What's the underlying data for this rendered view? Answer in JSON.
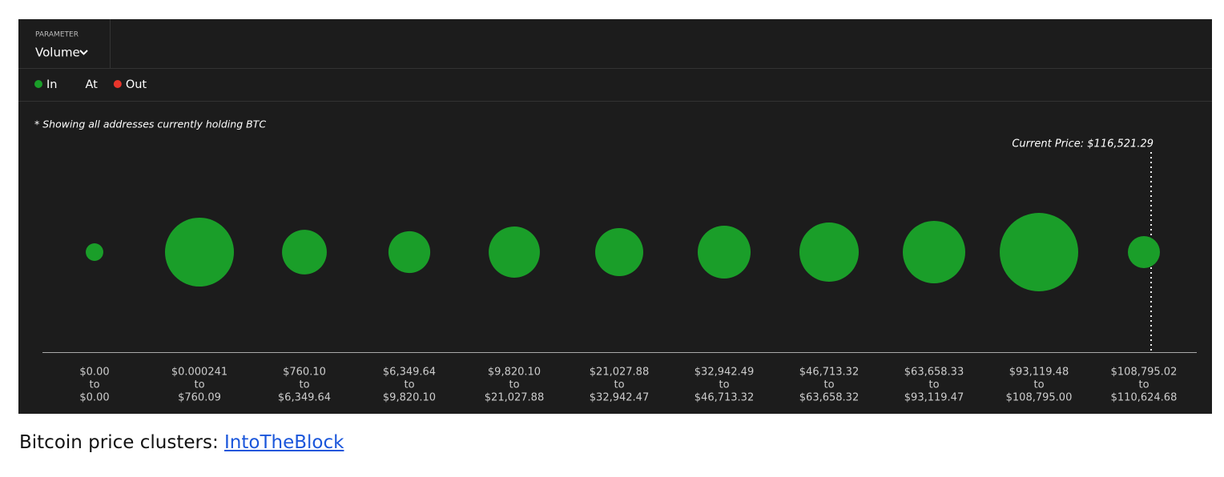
{
  "parameter_label": "PARAMETER",
  "parameter_value": "Volume",
  "caption": {
    "text": "Bitcoin price clusters:",
    "link": "IntoTheBlock"
  },
  "chart_data": {
    "type": "bubble",
    "note": "* Showing all addresses currently holding BTC",
    "annotation": "Current Price: $116,521.29",
    "range_word": "to",
    "x_from": [
      "$0.00",
      "$0.000241",
      "$760.10",
      "$6,349.64",
      "$9,820.10",
      "$21,027.88",
      "$32,942.49",
      "$46,713.32",
      "$63,658.33",
      "$93,119.48",
      "$108,795.02"
    ],
    "x_to": [
      "$0.00",
      "$760.09",
      "$6,349.64",
      "$9,820.10",
      "$21,027.88",
      "$32,942.47",
      "$46,713.32",
      "$63,658.32",
      "$93,119.47",
      "$108,795.00",
      "$110,624.68"
    ],
    "series": [
      {
        "name": "In",
        "color": "#1a9e29",
        "values": [
          12,
          185,
          78,
          68,
          102,
          90,
          109,
          137,
          152,
          240,
          40
        ]
      },
      {
        "name": "At",
        "values": [
          null,
          null,
          null,
          null,
          null,
          null,
          null,
          null,
          null,
          null,
          null
        ]
      },
      {
        "name": "Out",
        "color": "#e8352b",
        "values": [
          null,
          null,
          null,
          null,
          null,
          null,
          null,
          null,
          null,
          null,
          null
        ]
      }
    ]
  }
}
